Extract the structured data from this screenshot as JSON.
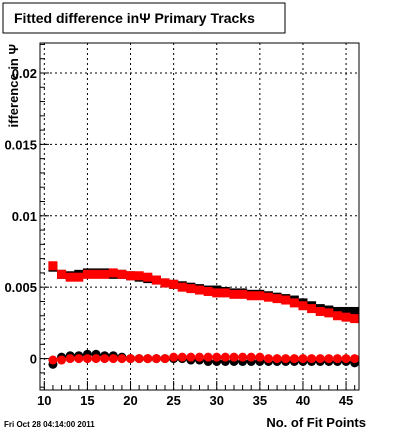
{
  "chart_data": {
    "type": "scatter",
    "title": "Fitted difference inΨ  Primary Tracks",
    "xlabel": "No. of Fit Points",
    "ylabel": "ifference in Ψ",
    "xlim": [
      9.5,
      46.5
    ],
    "ylim": [
      -0.0022,
      0.0221
    ],
    "grid": true,
    "x_ticks": [
      10,
      15,
      20,
      25,
      30,
      35,
      40,
      45
    ],
    "x_tick_labels": [
      "10",
      "15",
      "20",
      "25",
      "30",
      "35",
      "40",
      "45"
    ],
    "y_ticks": [
      0,
      0.005,
      0.01,
      0.015,
      0.02
    ],
    "y_tick_labels": [
      "0",
      "0.005",
      "0.01",
      "0.015",
      "0.02"
    ],
    "x": [
      11,
      12,
      13,
      14,
      15,
      16,
      17,
      18,
      19,
      20,
      21,
      22,
      23,
      24,
      25,
      26,
      27,
      28,
      29,
      30,
      31,
      32,
      33,
      34,
      35,
      36,
      37,
      38,
      39,
      40,
      41,
      42,
      43,
      44,
      45,
      46
    ],
    "series": [
      {
        "marker": "square",
        "color": "#000000",
        "values": [
          0.0064,
          0.0059,
          0.0058,
          0.0059,
          0.006,
          0.006,
          0.006,
          0.0059,
          0.0059,
          0.0058,
          0.0057,
          0.0056,
          0.0055,
          0.0053,
          0.0052,
          0.0051,
          0.005,
          0.0049,
          0.0048,
          0.0048,
          0.0047,
          0.0046,
          0.0046,
          0.0045,
          0.0045,
          0.0044,
          0.0043,
          0.0042,
          0.0041,
          0.0039,
          0.0037,
          0.0035,
          0.0034,
          0.0033,
          0.0033,
          0.0033
        ]
      },
      {
        "marker": "square",
        "color": "#ff0000",
        "values": [
          0.0065,
          0.0059,
          0.0057,
          0.0057,
          0.0059,
          0.0059,
          0.0059,
          0.006,
          0.0059,
          0.0058,
          0.0058,
          0.0057,
          0.0055,
          0.0053,
          0.0052,
          0.005,
          0.0049,
          0.0048,
          0.0047,
          0.0046,
          0.0046,
          0.0045,
          0.0045,
          0.0044,
          0.0044,
          0.0043,
          0.0042,
          0.0041,
          0.0039,
          0.0037,
          0.0035,
          0.0033,
          0.0032,
          0.003,
          0.0029,
          0.0028
        ]
      },
      {
        "marker": "circle",
        "color": "#000000",
        "values": [
          -0.0004,
          0.0001,
          0.0002,
          0.0002,
          0.0003,
          0.0003,
          0.0002,
          0.0002,
          0.0001,
          0.0,
          0.0,
          0.0,
          0.0,
          0.0,
          0.0,
          0.0,
          -0.0001,
          -0.0001,
          -0.0002,
          -0.0002,
          -0.0002,
          -0.0002,
          -0.0002,
          -0.0002,
          -0.0002,
          -0.0002,
          -0.0002,
          -0.0002,
          -0.0002,
          -0.0002,
          -0.0002,
          -0.0002,
          -0.0002,
          -0.0002,
          -0.0002,
          -0.0003
        ]
      },
      {
        "marker": "circle",
        "color": "#ff0000",
        "values": [
          -0.0001,
          -0.0001,
          0.0,
          0.0,
          0.0,
          0.0,
          0.0,
          0.0,
          0.0,
          0.0,
          0.0,
          0.0,
          0.0,
          0.0,
          0.0001,
          0.0001,
          0.0001,
          0.0001,
          0.0001,
          0.0001,
          0.0001,
          0.0001,
          0.0001,
          0.0001,
          0.0001,
          0.0,
          0.0,
          0.0,
          0.0,
          0.0,
          0.0,
          0.0,
          0.0,
          0.0,
          0.0,
          0.0
        ]
      }
    ]
  },
  "footer": {
    "timestamp": "Fri Oct 28 04:14:00 2011"
  }
}
